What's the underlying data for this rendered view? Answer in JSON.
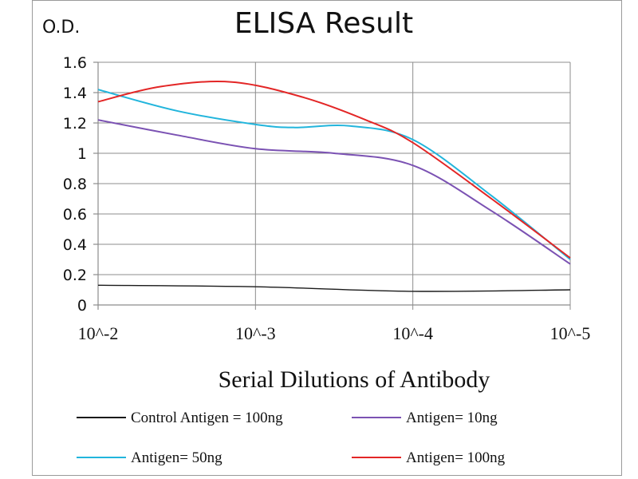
{
  "chart_data": {
    "type": "line",
    "title": "ELISA Result",
    "ylabel": "O.D.",
    "xlabel": "Serial Dilutions  of Antibody",
    "categories": [
      "10^-2",
      "10^-3",
      "10^-4",
      "10^-5"
    ],
    "ylim": [
      0,
      1.6
    ],
    "yticks": [
      "0",
      "0.2",
      "0.4",
      "0.6",
      "0.8",
      "1",
      "1.2",
      "1.4",
      "1.6"
    ],
    "grid": true,
    "legend_position": "bottom",
    "series": [
      {
        "name": "Control Antigen = 100ng",
        "color": "#1a1a1a",
        "x": [
          0,
          1,
          2,
          3
        ],
        "values": [
          0.13,
          0.12,
          0.09,
          0.1
        ]
      },
      {
        "name": "Antigen= 10ng",
        "color": "#7b52b3",
        "x": [
          0,
          0.5,
          1,
          1.5,
          2,
          2.5,
          3
        ],
        "values": [
          1.22,
          1.12,
          1.03,
          1.0,
          0.92,
          0.62,
          0.27
        ]
      },
      {
        "name": "Antigen= 50ng",
        "color": "#22b5dc",
        "x": [
          0,
          0.5,
          1,
          1.25,
          1.6,
          2,
          2.5,
          3
        ],
        "values": [
          1.42,
          1.28,
          1.19,
          1.17,
          1.18,
          1.09,
          0.72,
          0.3
        ]
      },
      {
        "name": "Antigen= 100ng",
        "color": "#e32626",
        "x": [
          0,
          0.4,
          0.85,
          1.3,
          1.7,
          2,
          2.5,
          3
        ],
        "values": [
          1.34,
          1.44,
          1.47,
          1.37,
          1.22,
          1.07,
          0.7,
          0.31
        ]
      }
    ]
  }
}
